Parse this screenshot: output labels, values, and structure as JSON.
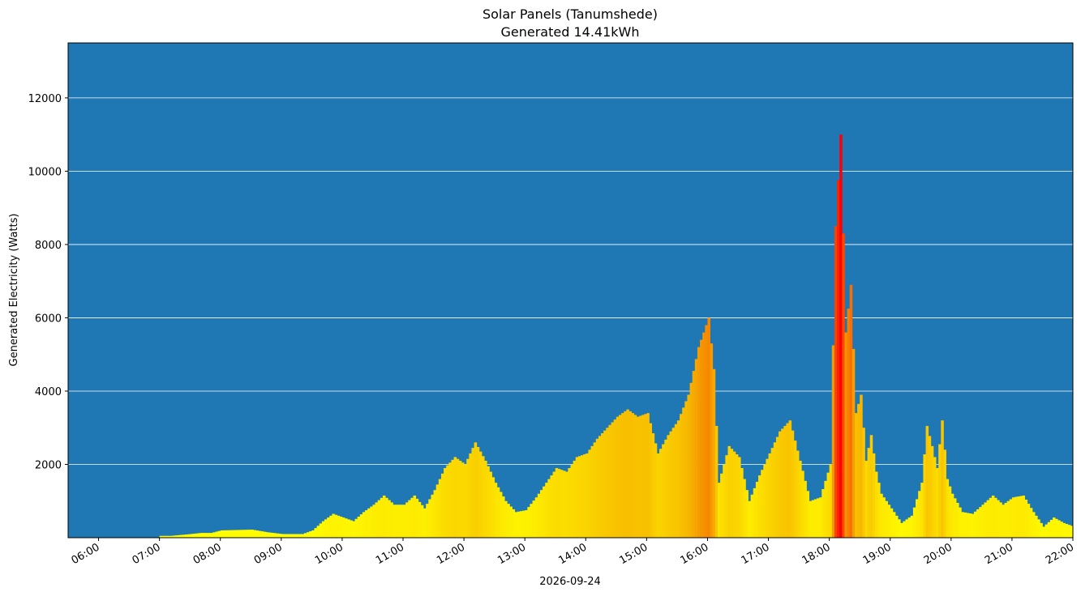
{
  "chart_data": {
    "type": "bar",
    "title": "Solar Panels (Tanumshede)",
    "subtitle": "Generated 14.41kWh",
    "xlabel": "2026-09-24",
    "ylabel": "Generated Electricity (Watts)",
    "xlim": [
      "05:30",
      "22:00"
    ],
    "ylim": [
      0,
      13500
    ],
    "grid": "horizontal",
    "background_color": "#1f77b4",
    "gridline_color": "#ffffff",
    "color_scale": [
      "#ffff00",
      "#f5a300",
      "#ff0000"
    ],
    "x_ticks": [
      "06:00",
      "07:00",
      "08:00",
      "09:00",
      "10:00",
      "11:00",
      "12:00",
      "13:00",
      "14:00",
      "15:00",
      "16:00",
      "17:00",
      "18:00",
      "19:00",
      "20:00",
      "21:00",
      "22:00"
    ],
    "y_ticks": [
      2000,
      4000,
      6000,
      8000,
      10000,
      12000
    ],
    "points": [
      [
        "07:00",
        50
      ],
      [
        "07:10",
        50
      ],
      [
        "07:30",
        100
      ],
      [
        "07:40",
        130
      ],
      [
        "07:50",
        130
      ],
      [
        "08:00",
        200
      ],
      [
        "08:30",
        220
      ],
      [
        "08:45",
        150
      ],
      [
        "09:00",
        100
      ],
      [
        "09:20",
        100
      ],
      [
        "09:30",
        200
      ],
      [
        "09:40",
        450
      ],
      [
        "09:50",
        650
      ],
      [
        "10:00",
        550
      ],
      [
        "10:10",
        450
      ],
      [
        "10:20",
        700
      ],
      [
        "10:30",
        900
      ],
      [
        "10:40",
        1150
      ],
      [
        "10:50",
        900
      ],
      [
        "11:00",
        900
      ],
      [
        "11:10",
        1150
      ],
      [
        "11:20",
        800
      ],
      [
        "11:30",
        1300
      ],
      [
        "11:40",
        1900
      ],
      [
        "11:50",
        2200
      ],
      [
        "12:00",
        2000
      ],
      [
        "12:10",
        2600
      ],
      [
        "12:20",
        2100
      ],
      [
        "12:30",
        1500
      ],
      [
        "12:40",
        1000
      ],
      [
        "12:50",
        700
      ],
      [
        "13:00",
        750
      ],
      [
        "13:10",
        1100
      ],
      [
        "13:20",
        1500
      ],
      [
        "13:30",
        1900
      ],
      [
        "13:40",
        1800
      ],
      [
        "13:50",
        2200
      ],
      [
        "14:00",
        2300
      ],
      [
        "14:10",
        2700
      ],
      [
        "14:20",
        3000
      ],
      [
        "14:30",
        3300
      ],
      [
        "14:40",
        3500
      ],
      [
        "14:50",
        3300
      ],
      [
        "15:00",
        3400
      ],
      [
        "15:10",
        2300
      ],
      [
        "15:20",
        2800
      ],
      [
        "15:30",
        3200
      ],
      [
        "15:40",
        3900
      ],
      [
        "15:50",
        5200
      ],
      [
        "16:00",
        6000
      ],
      [
        "16:05",
        4600
      ],
      [
        "16:10",
        1500
      ],
      [
        "16:20",
        2500
      ],
      [
        "16:30",
        2200
      ],
      [
        "16:40",
        1000
      ],
      [
        "16:50",
        1700
      ],
      [
        "17:00",
        2300
      ],
      [
        "17:10",
        2900
      ],
      [
        "17:20",
        3200
      ],
      [
        "17:30",
        2100
      ],
      [
        "17:40",
        1000
      ],
      [
        "17:50",
        1100
      ],
      [
        "18:00",
        2000
      ],
      [
        "18:05",
        8500
      ],
      [
        "18:10",
        11000
      ],
      [
        "18:15",
        5600
      ],
      [
        "18:20",
        6900
      ],
      [
        "18:25",
        3400
      ],
      [
        "18:30",
        3900
      ],
      [
        "18:35",
        2100
      ],
      [
        "18:40",
        2800
      ],
      [
        "18:45",
        1800
      ],
      [
        "18:50",
        1200
      ],
      [
        "19:00",
        800
      ],
      [
        "19:10",
        400
      ],
      [
        "19:20",
        600
      ],
      [
        "19:30",
        1500
      ],
      [
        "19:35",
        3050
      ],
      [
        "19:40",
        2500
      ],
      [
        "19:45",
        1900
      ],
      [
        "19:50",
        3200
      ],
      [
        "19:55",
        1600
      ],
      [
        "20:00",
        1200
      ],
      [
        "20:10",
        700
      ],
      [
        "20:20",
        650
      ],
      [
        "20:30",
        900
      ],
      [
        "20:40",
        1150
      ],
      [
        "20:50",
        900
      ],
      [
        "21:00",
        1100
      ],
      [
        "21:10",
        1150
      ],
      [
        "21:20",
        700
      ],
      [
        "21:30",
        300
      ],
      [
        "21:40",
        550
      ],
      [
        "21:50",
        400
      ],
      [
        "22:00",
        300
      ]
    ]
  }
}
